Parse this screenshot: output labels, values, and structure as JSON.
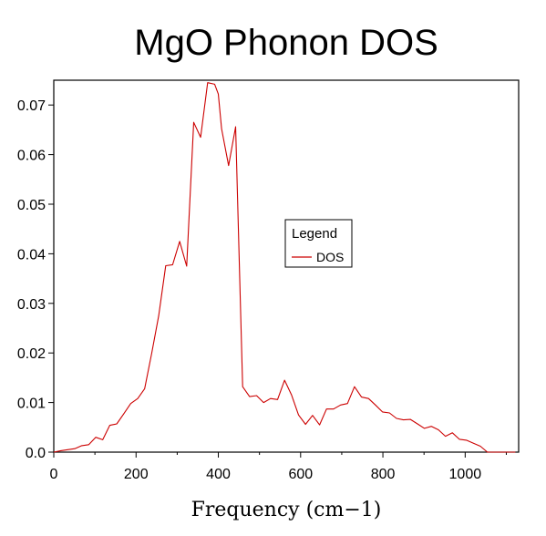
{
  "chart_data": {
    "type": "line",
    "title": "MgO Phonon DOS",
    "xlabel": "Frequency (cm−1)",
    "ylabel": "",
    "xlim": [
      0,
      1130
    ],
    "ylim": [
      0,
      0.075
    ],
    "xticks": [
      0,
      200,
      400,
      600,
      800,
      1000
    ],
    "xtick_labels": [
      "0",
      "200",
      "400",
      "600",
      "800",
      "1000"
    ],
    "yticks": [
      0,
      0.01,
      0.02,
      0.03,
      0.04,
      0.05,
      0.06,
      0.07
    ],
    "ytick_labels": [
      "0.0",
      "0.01",
      "0.02",
      "0.03",
      "0.04",
      "0.05",
      "0.06",
      "0.07"
    ],
    "grid": false,
    "legend": {
      "title": "Legend",
      "placement": "center-right"
    },
    "series": [
      {
        "name": "DOS",
        "color": "#cc0000",
        "x": [
          0,
          17,
          34,
          51,
          68,
          85,
          102,
          119,
          136,
          153,
          170,
          187,
          204,
          221,
          238,
          255,
          272,
          289,
          306,
          323,
          340,
          357,
          374,
          391,
          400,
          408,
          425,
          442,
          459,
          476,
          493,
          510,
          527,
          544,
          561,
          578,
          595,
          612,
          629,
          646,
          663,
          680,
          697,
          714,
          731,
          748,
          765,
          782,
          799,
          816,
          833,
          850,
          867,
          884,
          901,
          918,
          935,
          952,
          969,
          986,
          1003,
          1020,
          1037,
          1054,
          1071,
          1088,
          1105,
          1122
        ],
        "values": [
          0.0,
          0.0003,
          0.0005,
          0.0007,
          0.0013,
          0.0015,
          0.003,
          0.0025,
          0.0054,
          0.0057,
          0.0077,
          0.0098,
          0.0108,
          0.0128,
          0.0199,
          0.0275,
          0.0376,
          0.0378,
          0.0425,
          0.0375,
          0.0665,
          0.0635,
          0.0745,
          0.0742,
          0.0722,
          0.0652,
          0.0578,
          0.0656,
          0.0132,
          0.0112,
          0.0114,
          0.01,
          0.0108,
          0.0106,
          0.0145,
          0.0115,
          0.0075,
          0.0056,
          0.0074,
          0.0055,
          0.0087,
          0.0087,
          0.0095,
          0.0098,
          0.0132,
          0.0111,
          0.0108,
          0.0095,
          0.0081,
          0.0079,
          0.0068,
          0.0065,
          0.0066,
          0.0057,
          0.0048,
          0.0052,
          0.0045,
          0.0032,
          0.0039,
          0.0026,
          0.0024,
          0.0018,
          0.0012,
          0.0,
          0.0,
          0.0,
          0.0,
          0.0
        ]
      }
    ]
  }
}
